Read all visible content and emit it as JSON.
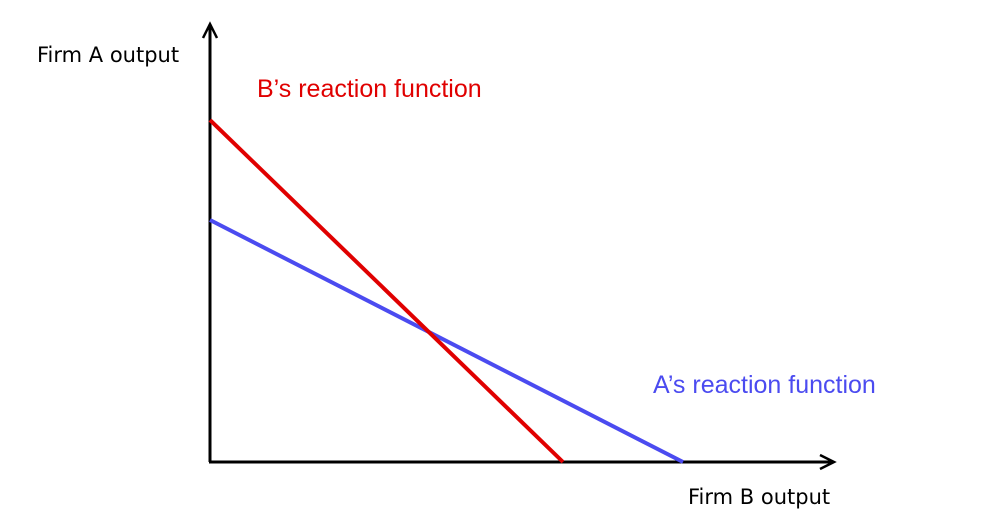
{
  "diagram": {
    "y_axis_label": "Firm A output",
    "x_axis_label": "Firm B output",
    "curves": {
      "b_reaction": {
        "label": "B’s reaction function",
        "color": "#e00000"
      },
      "a_reaction": {
        "label": "A’s reaction function",
        "color": "#4b4bf0"
      }
    },
    "axis_color": "#000000"
  }
}
